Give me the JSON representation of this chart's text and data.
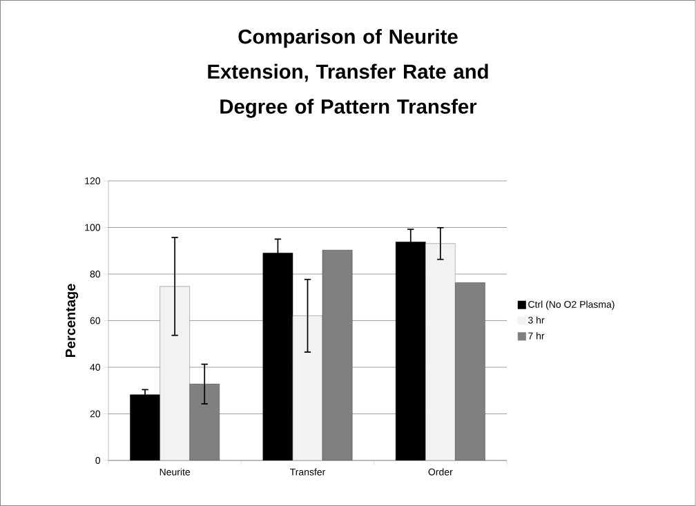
{
  "chart_data": {
    "type": "bar",
    "title": "Comparison of Neurite Extension, Transfer Rate and Degree of Pattern Transfer",
    "ylabel": "Percentage",
    "categories": [
      "Neurite",
      "Transfer",
      "Order"
    ],
    "series": [
      {
        "name": "Ctrl (No O2 Plasma)",
        "color": "#000000",
        "values": [
          28.2,
          89.0,
          93.8
        ],
        "errors": [
          2.2,
          6.0,
          5.4
        ]
      },
      {
        "name": "3 hr",
        "color": "#f2f2f2",
        "values": [
          74.7,
          62.1,
          93.1
        ],
        "errors": [
          21.0,
          15.6,
          6.8
        ]
      },
      {
        "name": "7 hr",
        "color": "#808080",
        "values": [
          32.8,
          90.3,
          76.3
        ],
        "errors": [
          8.5,
          null,
          null
        ]
      }
    ],
    "ylim": [
      0,
      120
    ],
    "yticks": [
      0,
      20,
      40,
      60,
      80,
      100,
      120
    ],
    "grid": "y",
    "legend": "right"
  }
}
